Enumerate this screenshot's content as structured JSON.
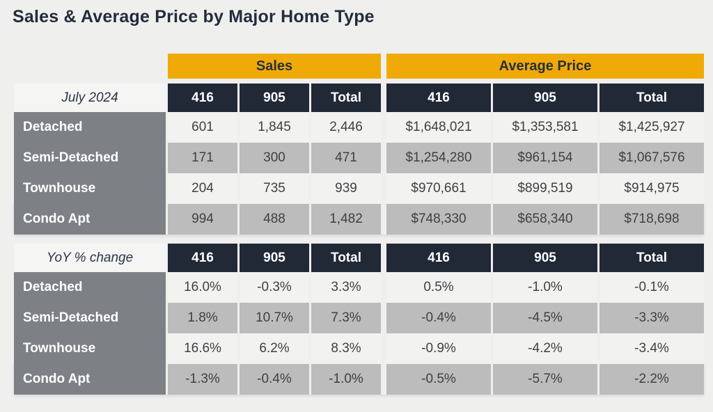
{
  "page": {
    "title": "Sales & Average Price by Major Home Type"
  },
  "colors": {
    "gold": "#f0aa08",
    "dark_navy": "#212836",
    "label_gray": "#7d8084",
    "row_light": "#f2f2f1",
    "row_dark": "#bcbcbc",
    "page_bg": "#efefee"
  },
  "chart_data": {
    "type": "table",
    "title": "Sales & Average Price by Major Home Type",
    "column_groups": [
      {
        "label": "Sales"
      },
      {
        "label": "Average Price"
      }
    ],
    "columns": [
      "416",
      "905",
      "Total",
      "416",
      "905",
      "Total"
    ],
    "sections": [
      {
        "header_label": "July 2024",
        "rows": [
          {
            "label": "Detached",
            "values": [
              "601",
              "1,845",
              "2,446",
              "$1,648,021",
              "$1,353,581",
              "$1,425,927"
            ]
          },
          {
            "label": "Semi-Detached",
            "values": [
              "171",
              "300",
              "471",
              "$1,254,280",
              "$961,154",
              "$1,067,576"
            ]
          },
          {
            "label": "Townhouse",
            "values": [
              "204",
              "735",
              "939",
              "$970,661",
              "$899,519",
              "$914,975"
            ]
          },
          {
            "label": "Condo Apt",
            "values": [
              "994",
              "488",
              "1,482",
              "$748,330",
              "$658,340",
              "$718,698"
            ]
          }
        ]
      },
      {
        "header_label": "YoY % change",
        "rows": [
          {
            "label": "Detached",
            "values": [
              "16.0%",
              "-0.3%",
              "3.3%",
              "0.5%",
              "-1.0%",
              "-0.1%"
            ]
          },
          {
            "label": "Semi-Detached",
            "values": [
              "1.8%",
              "10.7%",
              "7.3%",
              "-0.4%",
              "-4.5%",
              "-3.3%"
            ]
          },
          {
            "label": "Townhouse",
            "values": [
              "16.6%",
              "6.2%",
              "8.3%",
              "-0.9%",
              "-4.2%",
              "-3.4%"
            ]
          },
          {
            "label": "Condo Apt",
            "values": [
              "-1.3%",
              "-0.4%",
              "-1.0%",
              "-0.5%",
              "-5.7%",
              "-2.2%"
            ]
          }
        ]
      }
    ]
  }
}
